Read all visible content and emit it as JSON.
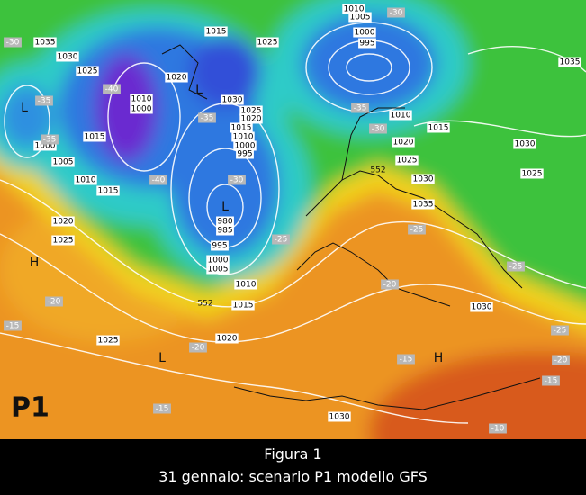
{
  "map": {
    "badge": "P1",
    "pressure_labels": [
      "1035",
      "1030",
      "1025",
      "1015",
      "1025",
      "1020",
      "1010",
      "1000",
      "1030",
      "1025",
      "1020",
      "1015",
      "1010",
      "1000",
      "995",
      "1015",
      "1000",
      "1005",
      "1010",
      "1015",
      "1020",
      "1025",
      "980",
      "985",
      "995",
      "1000",
      "1005",
      "1010",
      "1015",
      "1020",
      "1025",
      "1030",
      "1010",
      "1015",
      "1020",
      "1025",
      "1030",
      "1035",
      "1030",
      "1025",
      "1035",
      "1030",
      "1010",
      "1005",
      "1000",
      "995"
    ],
    "temperature_labels": [
      "-30",
      "-35",
      "-40",
      "-35",
      "-40",
      "-30",
      "-35",
      "-30",
      "-35",
      "-30",
      "-25",
      "-25",
      "-20",
      "-20",
      "-15",
      "-20",
      "-15",
      "-15",
      "-10",
      "-15",
      "-20",
      "-25",
      "-25"
    ],
    "thickness_labels": [
      "552",
      "552"
    ],
    "lows": [
      "L",
      "L",
      "L",
      "L"
    ],
    "highs": [
      "H",
      "H"
    ]
  },
  "caption": {
    "line1": "Figura 1",
    "line2": "31 gennaio: scenario P1 modello GFS"
  }
}
